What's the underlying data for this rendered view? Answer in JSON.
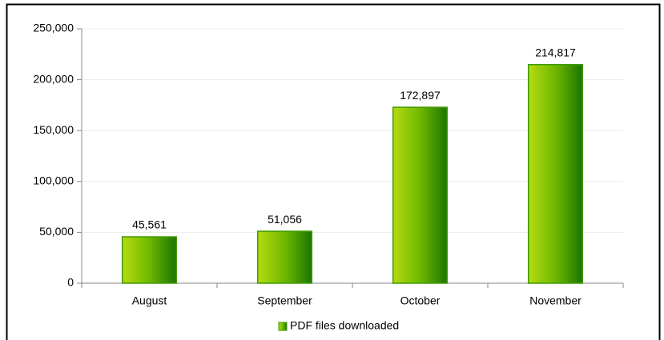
{
  "chart_data": {
    "type": "bar",
    "categories": [
      "August",
      "September",
      "October",
      "November"
    ],
    "series": [
      {
        "name": "PDF files downloaded",
        "color": "#3f9a00",
        "values": [
          45561,
          51056,
          172897,
          214817
        ],
        "value_labels": [
          "45,561",
          "51,056",
          "172,897",
          "214,817"
        ]
      }
    ],
    "ylim": [
      0,
      250000
    ],
    "yticks": [
      0,
      {
        "value": 50000,
        "label": "50,000"
      },
      {
        "value": 100000,
        "label": "100,000"
      },
      {
        "value": 150000,
        "label": "150,000"
      },
      {
        "value": 200000,
        "label": "200,000"
      },
      {
        "value": 250000,
        "label": "250,000"
      }
    ],
    "grid": true,
    "legend": "bottom"
  }
}
